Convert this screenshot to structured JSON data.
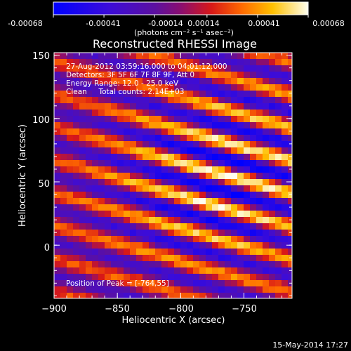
{
  "colorbar": {
    "tick_labels": [
      "-0.00068",
      "-0.00041",
      "-0.00014",
      "0.00014",
      "0.00041",
      "0.00068"
    ],
    "units_label": "(photons cm⁻² s⁻¹ asec⁻²)",
    "range": [
      -0.00068,
      0.00068
    ]
  },
  "chart_data": {
    "type": "heatmap",
    "title": "Reconstructed RHESSI Image",
    "xlabel": "Heliocentric X (arcsec)",
    "ylabel": "Heliocentric Y (arcsec)",
    "xlim": [
      -900,
      -712
    ],
    "ylim": [
      -42,
      152
    ],
    "x_ticks": [
      -900,
      -850,
      -800,
      -750
    ],
    "x_tick_labels": [
      "−900",
      "−850",
      "−800",
      "−750"
    ],
    "y_ticks": [
      0,
      50,
      100,
      150
    ],
    "y_tick_labels": [
      "0",
      "50",
      "100",
      "150"
    ],
    "peak": [
      -764,
      55
    ],
    "fringe_slope": -0.28,
    "fringe_spacing_arcsec": 26,
    "annotations": [
      "27-Aug-2012 03:59:16.000 to 04:01:12.000",
      "Detectors: 3F 5F 6F 7F 8F 9F, Att 0",
      "Energy Range: 12.0 - 25.0 keV",
      "Clean     Total counts: 2.14E+03"
    ],
    "peak_label": "Position of Peak = [-764,55]"
  },
  "footer": {
    "timestamp": "15-May-2014 17:27"
  }
}
